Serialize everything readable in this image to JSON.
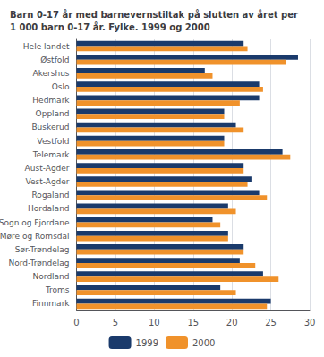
{
  "chart_data": {
    "type": "bar",
    "orientation": "horizontal",
    "title": "Barn 0-17 år med barnevernstiltak på slutten av året per\n1 000 barn 0-17 år. Fylke. 1999 og 2000",
    "categories": [
      "Hele landet",
      "Østfold",
      "Akershus",
      "Oslo",
      "Hedmark",
      "Oppland",
      "Buskerud",
      "Vestfold",
      "Telemark",
      "Aust-Agder",
      "Vest-Agder",
      "Rogaland",
      "Hordaland",
      "Sogn og Fjordane",
      "Møre og Romsdal",
      "Sør-Trøndelag",
      "Nord-Trøndelag",
      "Nordland",
      "Troms",
      "Finnmark"
    ],
    "series": [
      {
        "name": "1999",
        "color": "#1a3a6b",
        "values": [
          21.5,
          28.5,
          16.5,
          23.5,
          23.5,
          19.0,
          20.5,
          19.0,
          26.5,
          21.5,
          22.5,
          23.5,
          19.5,
          17.5,
          19.5,
          21.5,
          21.0,
          24.0,
          18.5,
          25.0
        ]
      },
      {
        "name": "2000",
        "color": "#f0922b",
        "values": [
          22.0,
          27.0,
          17.5,
          24.0,
          21.0,
          19.0,
          21.5,
          19.0,
          27.5,
          21.5,
          22.0,
          24.5,
          20.5,
          18.5,
          19.5,
          21.5,
          23.0,
          26.0,
          20.5,
          24.5
        ]
      }
    ],
    "xlim": [
      0,
      30
    ],
    "xticks": [
      0,
      5,
      10,
      15,
      20,
      25,
      30
    ],
    "grid": true,
    "legend": "bottom"
  }
}
